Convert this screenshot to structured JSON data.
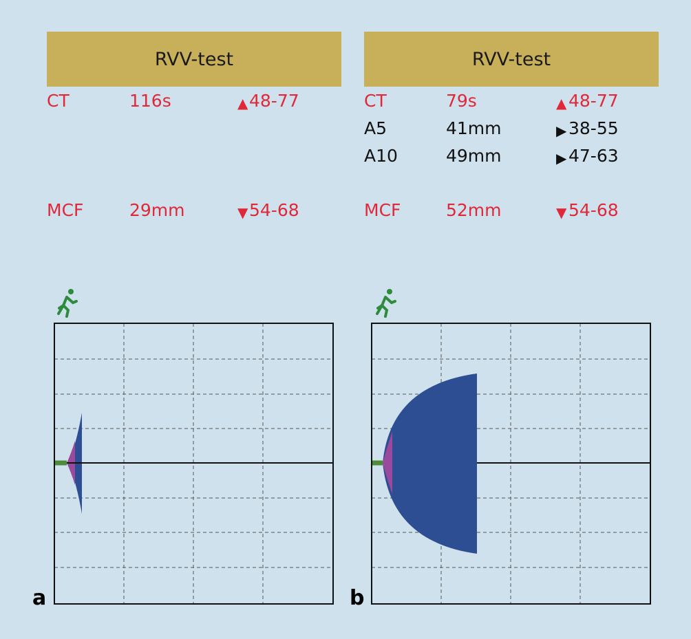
{
  "panels": [
    {
      "title": "RVV-test",
      "label": "a",
      "rows": [
        {
          "name": "CT",
          "value": "116s",
          "flag": "▲",
          "range": "48-77",
          "color": "#e0283a"
        },
        null,
        null,
        {
          "name": "MCF",
          "value": "29mm",
          "flag": "▼",
          "range": "54-68",
          "color": "#e0283a"
        }
      ]
    },
    {
      "title": "RVV-test",
      "label": "b",
      "rows": [
        {
          "name": "CT",
          "value": "79s",
          "flag": "▲",
          "range": "48-77",
          "color": "#e0283a"
        },
        {
          "name": "A5",
          "value": "41mm",
          "flag": "▶",
          "range": "38-55",
          "color": "#111111"
        },
        {
          "name": "A10",
          "value": "49mm",
          "flag": "▶",
          "range": "47-63",
          "color": "#111111"
        },
        {
          "name": "MCF",
          "value": "52mm",
          "flag": "▼",
          "range": "54-68",
          "color": "#e0283a"
        }
      ]
    }
  ]
}
